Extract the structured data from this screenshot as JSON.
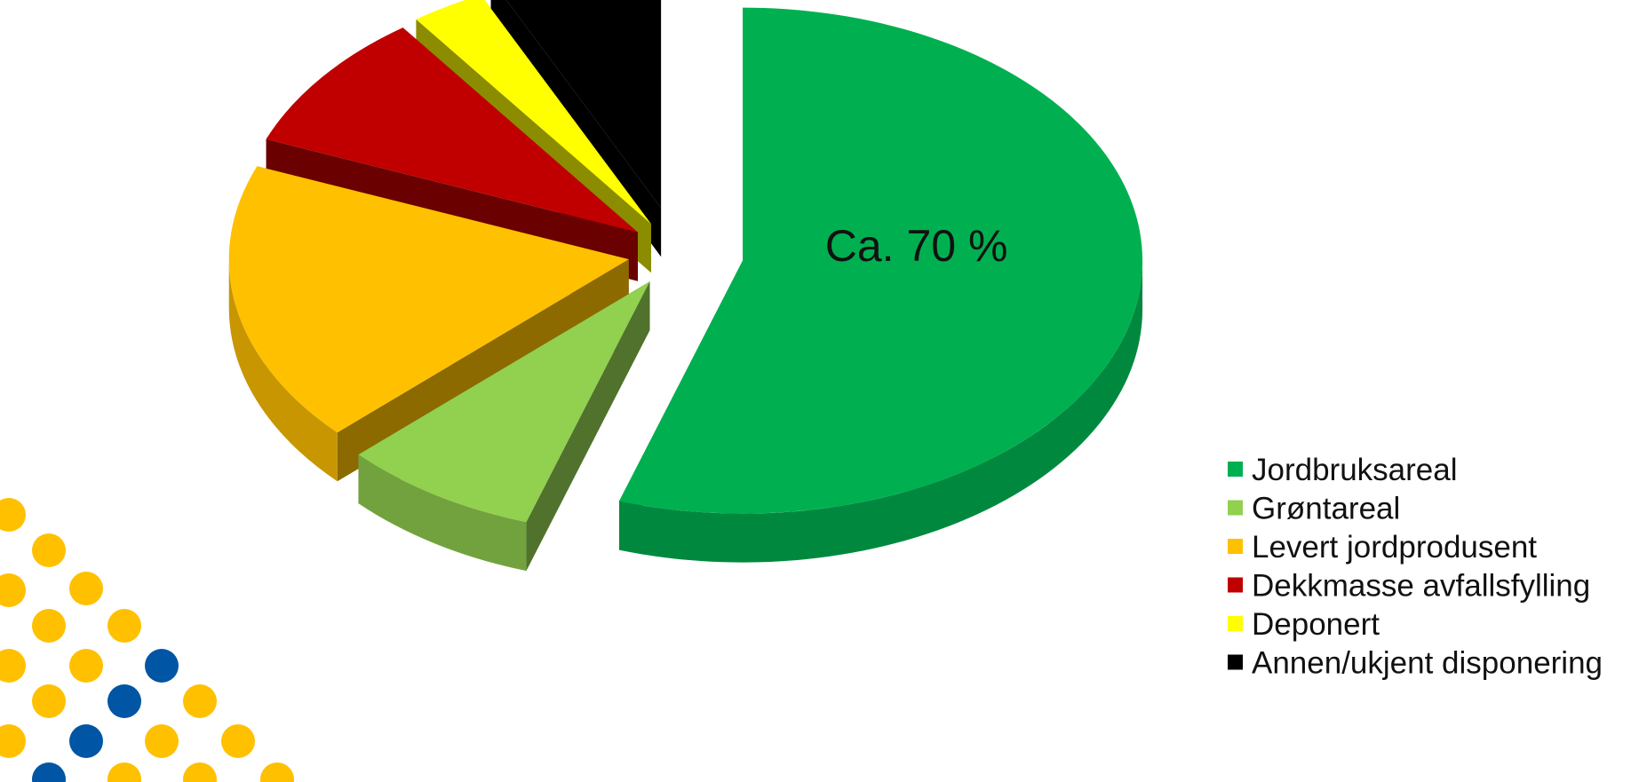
{
  "chart_data": {
    "type": "pie",
    "three_d": true,
    "exploded": true,
    "legend_position": "bottom-right",
    "slices": [
      {
        "label": "Jordbruksareal",
        "value": 55,
        "color": "#00b050",
        "annotation": "Ca. 70 %"
      },
      {
        "label": "Grøntareal",
        "value": 8,
        "color": "#92d050"
      },
      {
        "label": "Levert jordprodusent",
        "value": 18,
        "color": "#ffc000"
      },
      {
        "label": "Dekkmasse avfallsfylling",
        "value": 9,
        "color": "#c00000"
      },
      {
        "label": "Deponert",
        "value": 3,
        "color": "#ffff00"
      },
      {
        "label": "Annen/ukjent disponering",
        "value": 7,
        "color": "#000000"
      }
    ]
  },
  "decoration": {
    "name": "dot-pattern-logo",
    "colors": [
      "#ffc000",
      "#0055a5"
    ]
  }
}
